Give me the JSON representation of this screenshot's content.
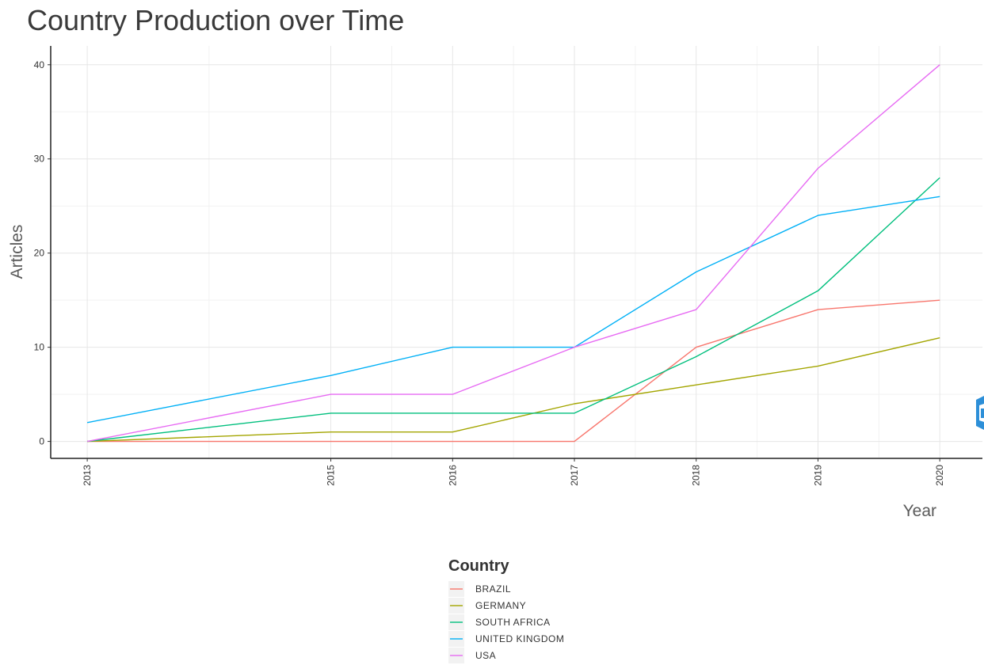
{
  "chart_data": {
    "type": "line",
    "title": "Country Production over Time",
    "xlabel": "Year",
    "ylabel": "Articles",
    "x": [
      2013,
      2015,
      2016,
      2017,
      2018,
      2019,
      2020
    ],
    "xlim": [
      2012.7,
      2020.35
    ],
    "ylim": [
      -1.8,
      42
    ],
    "y_ticks": [
      0,
      10,
      20,
      30,
      40
    ],
    "grid": true,
    "legend": {
      "title": "Country",
      "position": "bottom"
    },
    "series": [
      {
        "name": "BRAZIL",
        "color": "#F8766D",
        "values": [
          0,
          0,
          0,
          0,
          10,
          14,
          15
        ]
      },
      {
        "name": "GERMANY",
        "color": "#A3A500",
        "values": [
          0,
          1,
          1,
          4,
          6,
          8,
          11
        ]
      },
      {
        "name": "SOUTH AFRICA",
        "color": "#00BF7D",
        "values": [
          0,
          3,
          3,
          3,
          9,
          16,
          28
        ]
      },
      {
        "name": "UNITED KINGDOM",
        "color": "#00B0F6",
        "values": [
          2,
          7,
          10,
          10,
          18,
          24,
          26
        ]
      },
      {
        "name": "USA",
        "color": "#E76BF3",
        "values": [
          0,
          5,
          5,
          10,
          14,
          29,
          40
        ]
      }
    ]
  }
}
